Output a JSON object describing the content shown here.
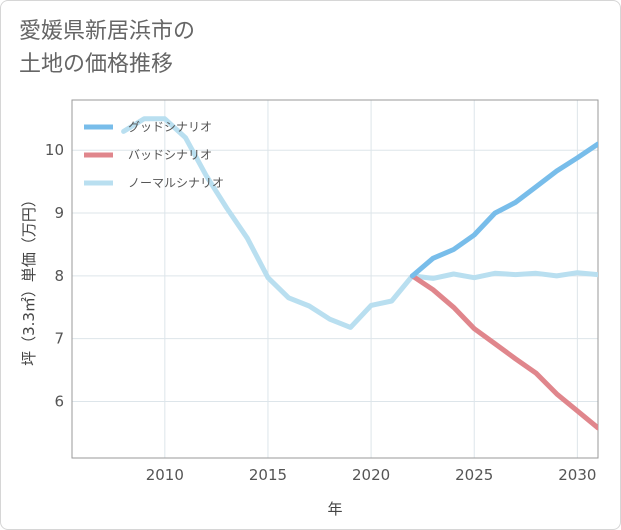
{
  "chart_data": {
    "type": "line",
    "title_lines": [
      "愛媛県新居浜市の",
      "土地の価格推移"
    ],
    "xlabel": "年",
    "ylabel": "坪（3.3㎡）単価（万円）",
    "xlim": [
      2005.5,
      2031
    ],
    "ylim": [
      5.1,
      10.8
    ],
    "x_ticks": [
      2010,
      2015,
      2020,
      2025,
      2030
    ],
    "y_ticks": [
      6,
      7,
      8,
      9,
      10
    ],
    "grid": true,
    "legend_position": "top-left",
    "series": [
      {
        "name": "グッドシナリオ",
        "color": "#78bdea",
        "x": [
          2022,
          2023,
          2024,
          2025,
          2026,
          2027,
          2028,
          2029,
          2030,
          2031
        ],
        "values": [
          8.0,
          8.28,
          8.42,
          8.65,
          9.0,
          9.17,
          9.42,
          9.67,
          9.88,
          10.1
        ]
      },
      {
        "name": "バッドシナリオ",
        "color": "#e0868c",
        "x": [
          2022,
          2023,
          2024,
          2025,
          2026,
          2027,
          2028,
          2029,
          2030,
          2031
        ],
        "values": [
          8.0,
          7.78,
          7.5,
          7.16,
          6.92,
          6.68,
          6.45,
          6.12,
          5.85,
          5.58
        ]
      },
      {
        "name": "ノーマルシナリオ",
        "color": "#b9dff0",
        "x": [
          2008,
          2009,
          2010,
          2011,
          2012,
          2013,
          2014,
          2015,
          2016,
          2017,
          2018,
          2019,
          2020,
          2021,
          2022,
          2023,
          2024,
          2025,
          2026,
          2027,
          2028,
          2029,
          2030,
          2031
        ],
        "values": [
          10.3,
          10.5,
          10.5,
          10.2,
          9.6,
          9.08,
          8.6,
          7.97,
          7.65,
          7.52,
          7.31,
          7.18,
          7.53,
          7.6,
          8.0,
          7.96,
          8.03,
          7.97,
          8.04,
          8.02,
          8.04,
          8.0,
          8.05,
          8.02
        ]
      }
    ]
  }
}
